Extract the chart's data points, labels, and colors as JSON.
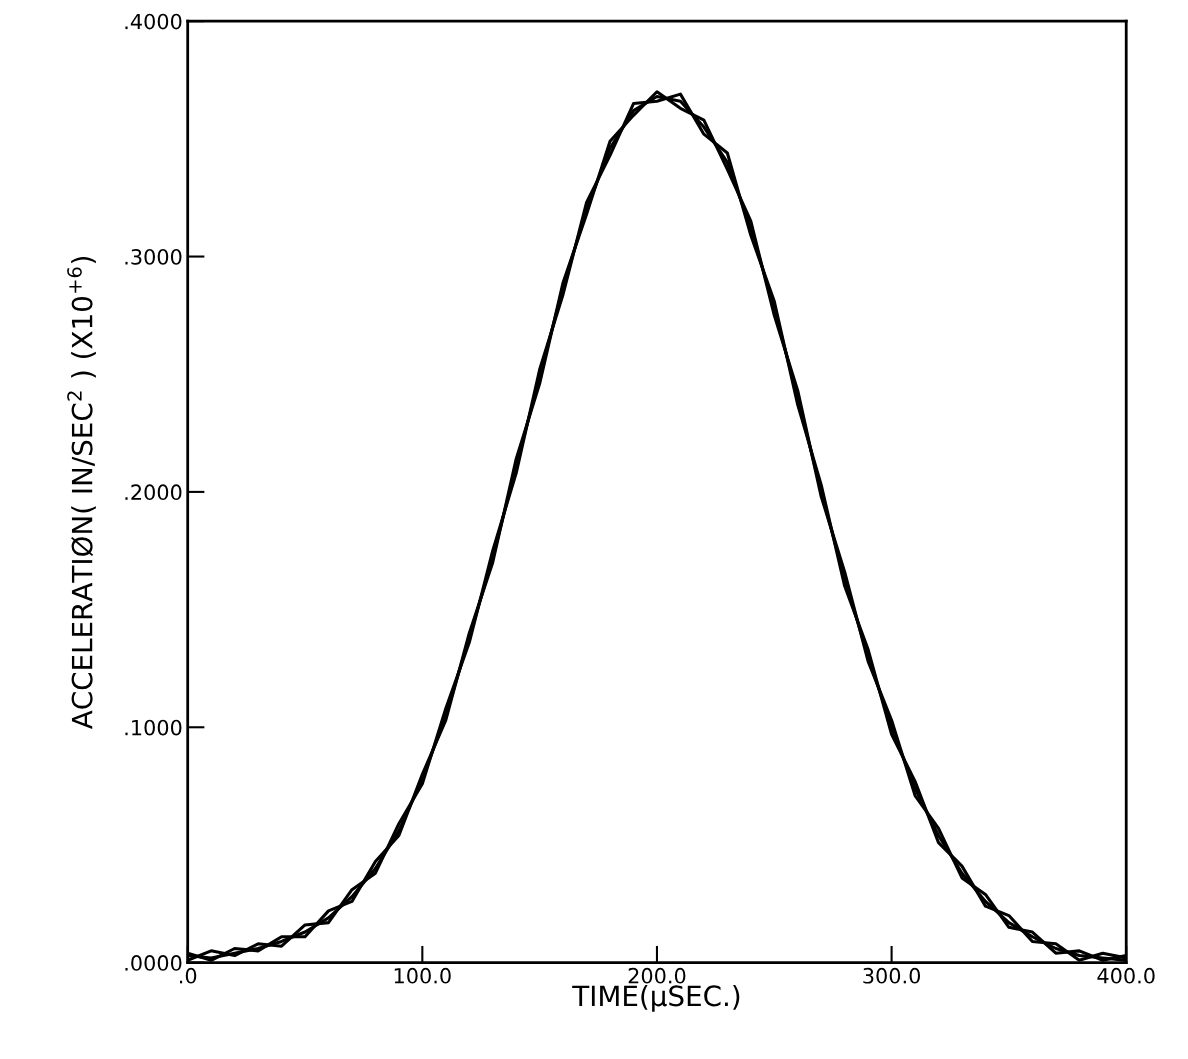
{
  "chart_data": {
    "type": "line",
    "xlabel": "TIME(μSEC.)",
    "ylabel": "ACCELERATIØN( IN/SEC$^{2}$ ) (X10$^{+6}$)",
    "x": [
      0,
      10,
      20,
      30,
      40,
      50,
      60,
      70,
      80,
      90,
      100,
      110,
      120,
      130,
      140,
      150,
      160,
      170,
      180,
      190,
      200,
      210,
      220,
      230,
      240,
      250,
      260,
      270,
      280,
      290,
      300,
      310,
      320,
      330,
      340,
      350,
      360,
      370,
      380,
      390,
      400
    ],
    "series": [
      {
        "color": "#000000",
        "values": [
          0.003,
          0.002,
          0.004,
          0.006,
          0.009,
          0.013,
          0.019,
          0.028,
          0.04,
          0.056,
          0.078,
          0.105,
          0.138,
          0.172,
          0.211,
          0.249,
          0.287,
          0.32,
          0.346,
          0.362,
          0.368,
          0.366,
          0.355,
          0.34,
          0.312,
          0.278,
          0.24,
          0.2,
          0.163,
          0.13,
          0.1,
          0.074,
          0.054,
          0.038,
          0.026,
          0.017,
          0.011,
          0.006,
          0.003,
          0.002,
          0.001
        ]
      },
      {
        "color": "#000000",
        "values": [
          0.001,
          0.005,
          0.003,
          0.008,
          0.007,
          0.016,
          0.017,
          0.031,
          0.038,
          0.059,
          0.076,
          0.108,
          0.136,
          0.175,
          0.208,
          0.252,
          0.284,
          0.323,
          0.343,
          0.365,
          0.366,
          0.369,
          0.352,
          0.344,
          0.309,
          0.281,
          0.237,
          0.203,
          0.16,
          0.133,
          0.097,
          0.077,
          0.051,
          0.041,
          0.024,
          0.02,
          0.009,
          0.008,
          0.001,
          0.004,
          0.002
        ]
      },
      {
        "color": "#000000",
        "values": [
          0.004,
          0.001,
          0.006,
          0.005,
          0.011,
          0.011,
          0.022,
          0.026,
          0.043,
          0.054,
          0.08,
          0.103,
          0.14,
          0.17,
          0.214,
          0.246,
          0.289,
          0.318,
          0.349,
          0.36,
          0.37,
          0.363,
          0.358,
          0.337,
          0.315,
          0.275,
          0.243,
          0.198,
          0.166,
          0.128,
          0.103,
          0.071,
          0.057,
          0.036,
          0.029,
          0.015,
          0.013,
          0.004,
          0.005,
          0.001,
          0.003
        ]
      }
    ],
    "xlim": [
      0,
      400
    ],
    "xticks": [
      {
        "value": 0,
        "label": ".0"
      },
      {
        "value": 100,
        "label": "100.0"
      },
      {
        "value": 200,
        "label": "200.0"
      },
      {
        "value": 300,
        "label": "300.0"
      },
      {
        "value": 400,
        "label": "400.0"
      }
    ],
    "ylim": [
      0,
      0.4
    ],
    "yticks": [
      {
        "value": 0,
        "label": ".0000"
      },
      {
        "value": 0.1,
        "label": ".1000"
      },
      {
        "value": 0.2,
        "label": ".2000"
      },
      {
        "value": 0.3,
        "label": ".3000"
      },
      {
        "value": 0.4,
        "label": ".4000"
      }
    ],
    "grid": false,
    "legend": false,
    "marker": "none",
    "line_style": "solid"
  }
}
